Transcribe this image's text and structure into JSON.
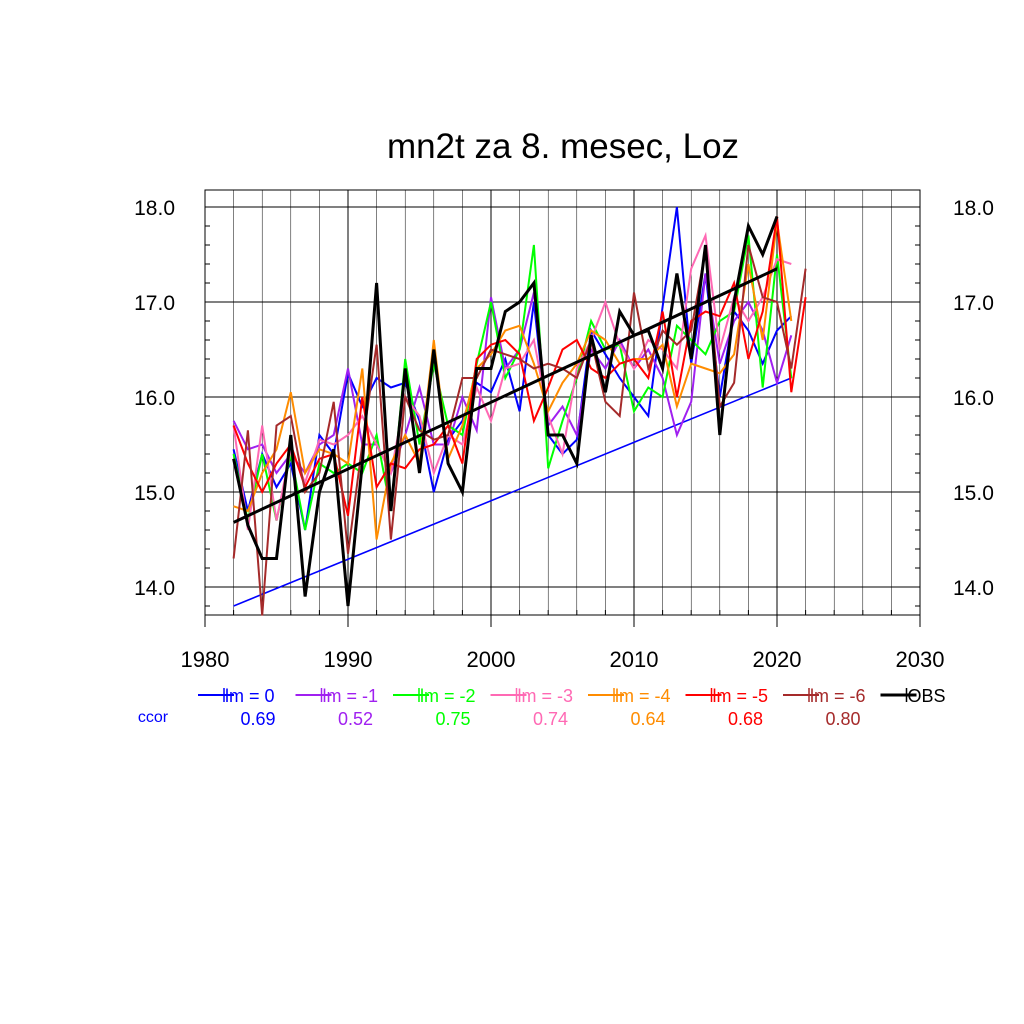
{
  "chart_data": {
    "type": "line",
    "title": "mn2t za 8. mesec, Loz",
    "xlabel": "",
    "ylabel": "",
    "xlim": [
      1980,
      2030
    ],
    "ylim": [
      13.7,
      18.05
    ],
    "x_ticks": [
      "1980",
      "1990",
      "2000",
      "2010",
      "2020",
      "2030"
    ],
    "y_ticks": [
      "14.0",
      "15.0",
      "16.0",
      "17.0",
      "18.0"
    ],
    "grid": true,
    "legend_position": "bottom",
    "ccor_label": "ccor",
    "series": [
      {
        "name": "lm = 0",
        "color": "#0000ff",
        "ccor": "0.69",
        "x": [
          1982,
          1983,
          1984,
          1985,
          1986,
          1987,
          1988,
          1989,
          1990,
          1991,
          1992,
          1993,
          1994,
          1995,
          1996,
          1997,
          1998,
          1999,
          2000,
          2001,
          2002,
          2003,
          2004,
          2005,
          2006,
          2007,
          2008,
          2009,
          2010,
          2011,
          2012,
          2013,
          2014,
          2015,
          2016,
          2017,
          2018,
          2019,
          2020,
          2021
        ],
        "y": [
          15.45,
          14.8,
          15.4,
          15.05,
          15.3,
          14.6,
          15.6,
          15.4,
          16.25,
          15.9,
          16.2,
          16.1,
          16.15,
          15.75,
          15.0,
          15.55,
          15.75,
          16.15,
          16.05,
          16.4,
          15.85,
          17.0,
          15.6,
          15.4,
          15.55,
          16.7,
          16.45,
          16.2,
          16.0,
          15.8,
          16.95,
          18.0,
          16.35,
          17.3,
          16.0,
          16.9,
          16.7,
          16.35,
          16.7,
          16.85
        ],
        "trend": {
          "x": [
            1982,
            2021
          ],
          "y": [
            13.8,
            16.2
          ]
        }
      },
      {
        "name": "lm = -1",
        "color": "#a020f0",
        "ccor": "0.52",
        "x": [
          1982,
          1983,
          1984,
          1985,
          1986,
          1987,
          1988,
          1989,
          1990,
          1991,
          1992,
          1993,
          1994,
          1995,
          1996,
          1997,
          1998,
          1999,
          2000,
          2001,
          2002,
          2003,
          2004,
          2005,
          2006,
          2007,
          2008,
          2009,
          2010,
          2011,
          2012,
          2013,
          2014,
          2015,
          2016,
          2017,
          2018,
          2019,
          2020,
          2021
        ],
        "y": [
          15.75,
          15.45,
          15.5,
          15.2,
          15.4,
          15.2,
          15.5,
          15.6,
          16.3,
          15.5,
          15.5,
          15.2,
          15.6,
          16.1,
          15.5,
          15.5,
          16.0,
          15.65,
          17.05,
          16.3,
          16.5,
          17.1,
          15.7,
          15.9,
          15.6,
          16.5,
          16.3,
          16.6,
          16.3,
          16.5,
          16.2,
          15.6,
          15.95,
          17.3,
          16.35,
          16.8,
          17.0,
          16.7,
          16.15,
          16.65
        ]
      },
      {
        "name": "lm = -2",
        "color": "#00ff00",
        "ccor": "0.75",
        "x": [
          1982,
          1983,
          1984,
          1985,
          1986,
          1987,
          1988,
          1989,
          1990,
          1991,
          1992,
          1993,
          1994,
          1995,
          1996,
          1997,
          1998,
          1999,
          2000,
          2001,
          2002,
          2003,
          2004,
          2005,
          2006,
          2007,
          2008,
          2009,
          2010,
          2011,
          2012,
          2013,
          2014,
          2015,
          2016,
          2017,
          2018,
          2019,
          2020,
          2021
        ],
        "y": [
          15.4,
          14.7,
          15.4,
          14.7,
          15.4,
          14.6,
          15.3,
          15.2,
          15.3,
          15.2,
          15.6,
          14.8,
          16.4,
          15.5,
          16.35,
          15.7,
          15.6,
          16.35,
          17.0,
          16.2,
          16.5,
          17.6,
          15.25,
          15.75,
          16.2,
          16.8,
          16.5,
          16.55,
          15.85,
          16.1,
          16.0,
          16.75,
          16.6,
          16.45,
          16.8,
          16.9,
          17.7,
          16.1,
          17.5,
          16.2
        ]
      },
      {
        "name": "lm = -3",
        "color": "#ff69b4",
        "ccor": "0.74",
        "x": [
          1982,
          1983,
          1984,
          1985,
          1986,
          1987,
          1988,
          1989,
          1990,
          1991,
          1992,
          1993,
          1994,
          1995,
          1996,
          1997,
          1998,
          1999,
          2000,
          2001,
          2002,
          2003,
          2004,
          2005,
          2006,
          2007,
          2008,
          2009,
          2010,
          2011,
          2012,
          2013,
          2014,
          2015,
          2016,
          2017,
          2018,
          2019,
          2020,
          2021
        ],
        "y": [
          15.7,
          14.6,
          15.7,
          14.7,
          15.45,
          15.1,
          15.55,
          15.5,
          15.6,
          15.8,
          15.5,
          15.2,
          16.0,
          15.8,
          15.2,
          15.6,
          15.5,
          16.1,
          15.75,
          16.3,
          16.35,
          16.6,
          15.8,
          15.4,
          16.3,
          16.6,
          17.0,
          16.55,
          16.3,
          16.6,
          16.5,
          16.3,
          17.35,
          17.7,
          16.5,
          17.05,
          16.8,
          17.05,
          17.45,
          17.4
        ]
      },
      {
        "name": "lm = -4",
        "color": "#ff8c00",
        "ccor": "0.64",
        "x": [
          1982,
          1983,
          1984,
          1985,
          1986,
          1987,
          1988,
          1989,
          1990,
          1991,
          1992,
          1993,
          1994,
          1995,
          1996,
          1997,
          1998,
          1999,
          2000,
          2001,
          2002,
          2003,
          2004,
          2005,
          2006,
          2007,
          2008,
          2009,
          2010,
          2011,
          2012,
          2013,
          2014,
          2015,
          2016,
          2017,
          2018,
          2019,
          2020,
          2021
        ],
        "y": [
          14.85,
          14.8,
          15.2,
          15.45,
          16.05,
          15.2,
          15.45,
          15.4,
          15.3,
          16.3,
          14.5,
          15.3,
          15.6,
          15.3,
          16.6,
          15.35,
          15.7,
          16.3,
          16.45,
          16.7,
          16.75,
          16.35,
          15.85,
          16.15,
          16.35,
          16.7,
          16.6,
          16.35,
          16.4,
          16.4,
          16.55,
          15.9,
          16.35,
          16.3,
          16.25,
          16.45,
          17.4,
          16.6,
          17.85,
          16.8
        ]
      },
      {
        "name": "lm = -5",
        "color": "#ff0000",
        "ccor": "0.68",
        "x": [
          1982,
          1983,
          1984,
          1985,
          1986,
          1987,
          1988,
          1989,
          1990,
          1991,
          1992,
          1993,
          1994,
          1995,
          1996,
          1997,
          1998,
          1999,
          2000,
          2001,
          2002,
          2003,
          2004,
          2005,
          2006,
          2007,
          2008,
          2009,
          2010,
          2011,
          2012,
          2013,
          2014,
          2015,
          2016,
          2017,
          2018,
          2019,
          2020,
          2021,
          2022
        ],
        "y": [
          15.7,
          15.3,
          15.0,
          15.3,
          15.5,
          15.05,
          15.35,
          15.4,
          14.75,
          16.0,
          15.05,
          15.3,
          15.25,
          15.45,
          15.5,
          15.7,
          15.3,
          16.4,
          16.55,
          16.6,
          16.45,
          15.75,
          16.1,
          16.5,
          16.6,
          16.3,
          16.2,
          16.35,
          16.4,
          16.2,
          16.9,
          16.0,
          16.8,
          16.9,
          16.85,
          17.2,
          16.4,
          16.9,
          17.9,
          16.05,
          17.05
        ]
      },
      {
        "name": "lm = -6",
        "color": "#a52a2a",
        "ccor": "0.80",
        "x": [
          1982,
          1983,
          1984,
          1985,
          1986,
          1987,
          1988,
          1989,
          1990,
          1991,
          1992,
          1993,
          1994,
          1995,
          1996,
          1997,
          1998,
          1999,
          2000,
          2001,
          2002,
          2003,
          2004,
          2005,
          2006,
          2007,
          2008,
          2009,
          2010,
          2011,
          2012,
          2013,
          2014,
          2015,
          2016,
          2017,
          2018,
          2019,
          2020,
          2021,
          2022
        ],
        "y": [
          14.3,
          15.65,
          13.7,
          15.7,
          15.8,
          15.0,
          15.2,
          15.95,
          14.35,
          15.5,
          16.55,
          14.5,
          16.0,
          15.65,
          15.55,
          15.6,
          16.2,
          16.2,
          16.5,
          16.45,
          16.4,
          16.3,
          16.35,
          16.3,
          16.2,
          16.6,
          15.95,
          15.8,
          17.1,
          16.3,
          16.7,
          16.55,
          16.7,
          17.55,
          15.9,
          16.15,
          17.6,
          17.05,
          17.0,
          16.3,
          17.35
        ]
      },
      {
        "name": "OBS",
        "color": "#000000",
        "ccor": "",
        "x": [
          1982,
          1983,
          1984,
          1985,
          1986,
          1987,
          1988,
          1989,
          1990,
          1991,
          1992,
          1993,
          1994,
          1995,
          1996,
          1997,
          1998,
          1999,
          2000,
          2001,
          2002,
          2003,
          2004,
          2005,
          2006,
          2007,
          2008,
          2009,
          2010,
          2011,
          2012,
          2013,
          2014,
          2015,
          2016,
          2017,
          2018,
          2019,
          2020
        ],
        "y": [
          15.35,
          14.65,
          14.3,
          14.3,
          15.6,
          13.9,
          15.0,
          15.45,
          13.8,
          15.3,
          17.2,
          14.8,
          16.3,
          15.2,
          16.5,
          15.3,
          15.0,
          16.3,
          16.3,
          16.9,
          17.0,
          17.2,
          15.6,
          15.6,
          15.3,
          16.65,
          16.05,
          16.9,
          16.65,
          16.7,
          16.3,
          17.3,
          16.4,
          17.6,
          15.6,
          17.0,
          17.8,
          17.5,
          17.9
        ],
        "trend": {
          "x": [
            1982,
            2020
          ],
          "y": [
            14.68,
            17.35
          ]
        }
      }
    ]
  }
}
